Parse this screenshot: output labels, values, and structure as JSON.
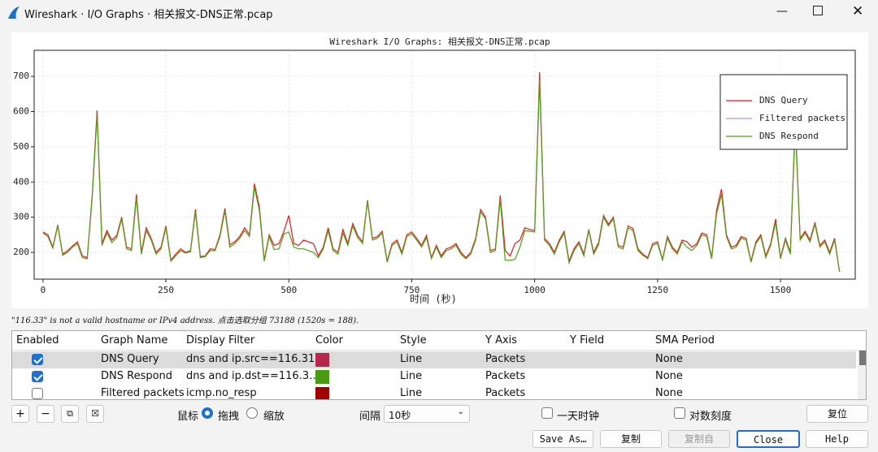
{
  "window": {
    "title": "Wireshark · I/O Graphs · 相关报文-DNS正常.pcap"
  },
  "chart_data": {
    "type": "line",
    "title": "Wireshark I/O Graphs: 相关报文-DNS正常.pcap",
    "xlabel": "时间 (秒)",
    "x": [
      0,
      10,
      20,
      30,
      40,
      50,
      60,
      70,
      80,
      90,
      100,
      110,
      120,
      130,
      140,
      150,
      160,
      170,
      180,
      190,
      200,
      210,
      220,
      230,
      240,
      250,
      260,
      270,
      280,
      290,
      300,
      310,
      320,
      330,
      340,
      350,
      360,
      370,
      380,
      390,
      400,
      410,
      420,
      430,
      440,
      450,
      460,
      470,
      480,
      490,
      500,
      510,
      520,
      530,
      540,
      550,
      560,
      570,
      580,
      590,
      600,
      610,
      620,
      630,
      640,
      650,
      660,
      670,
      680,
      690,
      700,
      710,
      720,
      730,
      740,
      750,
      760,
      770,
      780,
      790,
      800,
      810,
      820,
      830,
      840,
      850,
      860,
      870,
      880,
      890,
      900,
      910,
      920,
      930,
      940,
      950,
      960,
      970,
      980,
      990,
      1000,
      1010,
      1020,
      1030,
      1040,
      1050,
      1060,
      1070,
      1080,
      1090,
      1100,
      1110,
      1120,
      1130,
      1140,
      1150,
      1160,
      1170,
      1180,
      1190,
      1200,
      1210,
      1220,
      1230,
      1240,
      1250,
      1260,
      1270,
      1280,
      1290,
      1300,
      1310,
      1320,
      1330,
      1340,
      1350,
      1360,
      1370,
      1380,
      1390,
      1400,
      1410,
      1420,
      1430,
      1440,
      1450,
      1460,
      1470,
      1480,
      1490,
      1500,
      1510,
      1520,
      1530,
      1540,
      1550,
      1560,
      1570,
      1580,
      1590,
      1600,
      1610,
      1620
    ],
    "series": [
      {
        "name": "DNS Query",
        "color": "#e8191f",
        "values": [
          258,
          250,
          215,
          278,
          195,
          205,
          218,
          230,
          190,
          185,
          360,
          603,
          225,
          262,
          235,
          248,
          300,
          215,
          210,
          365,
          200,
          270,
          240,
          200,
          215,
          275,
          178,
          195,
          210,
          200,
          205,
          322,
          188,
          190,
          210,
          208,
          250,
          325,
          222,
          230,
          245,
          270,
          250,
          395,
          330,
          178,
          250,
          220,
          225,
          260,
          305,
          225,
          220,
          235,
          230,
          225,
          190,
          215,
          270,
          210,
          200,
          265,
          225,
          282,
          248,
          230,
          348,
          240,
          245,
          260,
          175,
          225,
          235,
          200,
          250,
          258,
          240,
          220,
          248,
          185,
          220,
          190,
          210,
          215,
          225,
          200,
          185,
          200,
          240,
          322,
          300,
          205,
          210,
          362,
          205,
          190,
          225,
          235,
          270,
          265,
          262,
          712,
          240,
          225,
          200,
          235,
          260,
          175,
          210,
          230,
          195,
          265,
          200,
          228,
          305,
          280,
          300,
          220,
          215,
          275,
          268,
          210,
          195,
          185,
          225,
          230,
          180,
          245,
          215,
          200,
          235,
          230,
          215,
          225,
          255,
          250,
          185,
          320,
          380,
          250,
          215,
          220,
          245,
          240,
          175,
          230,
          250,
          190,
          225,
          295,
          185,
          240,
          200,
          560,
          240,
          260,
          235,
          285,
          220,
          235,
          200,
          240,
          145
        ]
      },
      {
        "name": "Filtered packets",
        "color": "#c88fb0"
      },
      {
        "name": "DNS Respond",
        "color": "#4fa01a",
        "values": [
          255,
          245,
          212,
          275,
          192,
          200,
          215,
          225,
          185,
          182,
          355,
          590,
          220,
          255,
          228,
          242,
          295,
          210,
          205,
          355,
          195,
          262,
          235,
          195,
          210,
          270,
          175,
          190,
          205,
          198,
          202,
          315,
          185,
          188,
          205,
          205,
          245,
          318,
          215,
          225,
          240,
          262,
          245,
          385,
          320,
          175,
          245,
          208,
          210,
          252,
          258,
          215,
          210,
          210,
          205,
          200,
          185,
          210,
          262,
          205,
          195,
          255,
          220,
          275,
          242,
          225,
          345,
          235,
          240,
          255,
          172,
          220,
          230,
          195,
          245,
          252,
          235,
          215,
          242,
          182,
          215,
          185,
          205,
          210,
          220,
          195,
          182,
          195,
          235,
          315,
          295,
          200,
          205,
          350,
          178,
          178,
          180,
          215,
          262,
          260,
          258,
          690,
          235,
          220,
          195,
          230,
          255,
          170,
          205,
          225,
          190,
          262,
          195,
          222,
          300,
          275,
          295,
          215,
          210,
          270,
          262,
          205,
          192,
          182,
          220,
          225,
          178,
          240,
          210,
          195,
          230,
          215,
          205,
          220,
          250,
          245,
          182,
          310,
          365,
          245,
          210,
          215,
          240,
          235,
          172,
          225,
          245,
          185,
          220,
          285,
          182,
          235,
          195,
          575,
          235,
          255,
          230,
          280,
          215,
          230,
          195,
          235,
          145
        ]
      }
    ],
    "xlim": [
      -18,
      1652
    ],
    "ylim": [
      124,
      774
    ],
    "xticks": [
      0,
      250,
      500,
      750,
      1000,
      1250,
      1500
    ],
    "yticks": [
      200,
      300,
      400,
      500,
      600,
      700
    ],
    "grid": true,
    "log_scale": false,
    "legend": "upper right"
  },
  "status": "\"116.33\" is not a valid hostname or IPv4 address. 点击选取分组 73188 (1520s = 188).",
  "table": {
    "columns": [
      "Enabled",
      "Graph Name",
      "Display Filter",
      "Color",
      "Style",
      "Y Axis",
      "Y Field",
      "SMA Period"
    ],
    "rows": [
      {
        "enabled": true,
        "name": "DNS Query",
        "filter": "dns and ip.src==116.31…",
        "color": "#b8284b",
        "style": "Line",
        "y_axis": "Packets",
        "sma": "None"
      },
      {
        "enabled": true,
        "name": "DNS Respond",
        "filter": "dns and ip.dst==116.3…",
        "color": "#4a9a14",
        "style": "Line",
        "y_axis": "Packets",
        "sma": "None"
      },
      {
        "enabled": false,
        "name": "Filtered packets",
        "filter": "icmp.no_resp",
        "color": "#a00000",
        "style": "Line",
        "y_axis": "Packets",
        "sma": "None"
      }
    ]
  },
  "controls": {
    "mouse_label": "鼠标",
    "drag": "拖拽",
    "zoom": "缩放",
    "interval_label": "间隔",
    "interval": "10秒",
    "day_clock": "一天时钟",
    "log_scale": "对数刻度",
    "reset": "复位"
  },
  "buttons": [
    "Save As…",
    "复制",
    "复制自",
    "Close",
    "Help"
  ]
}
